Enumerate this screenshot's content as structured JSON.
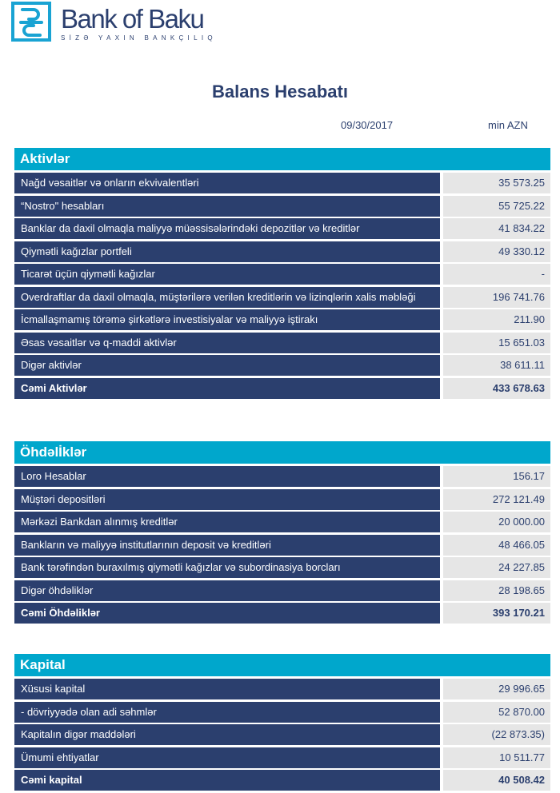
{
  "logo": {
    "brand": "Bank of Baku",
    "tagline": "SİZƏ YAXIN BANKÇILIQ"
  },
  "title": "Balans Hesabatı",
  "date": "09/30/2017",
  "unit": "min AZN",
  "colors": {
    "navy": "#2b3f6e",
    "cyan": "#00a7cc",
    "value_bg": "#e6e6e6"
  },
  "sections": [
    {
      "title": "Aktivlər",
      "rows": [
        {
          "label": "Nağd vəsaitlər və onların ekvivalentləri",
          "value": "35 573.25"
        },
        {
          "label": "“Nostro\" hesabları",
          "value": "55 725.22"
        },
        {
          "label": "Banklar da daxil olmaqla maliyyə müəssisələrindəki depozitlər və kreditlər",
          "value": "41 834.22"
        },
        {
          "label": "Qiymətli kağızlar portfeli",
          "value": "49 330.12"
        },
        {
          "label": "Ticarət üçün qiymətli kağızlar",
          "value": "-"
        },
        {
          "label": "Overdraftlar da daxil olmaqla, müştərilərə verilən kreditlərin və lizinqlərin xalis məbləği",
          "value": "196 741.76"
        },
        {
          "label": "İcmallaşmamış törəmə şirkətlərə investisiyalar və maliyyə iştirakı",
          "value": "211.90"
        },
        {
          "label": "Əsas vəsaitlər və q-maddi aktivlər",
          "value": "15 651.03"
        },
        {
          "label": "Digər aktivlər",
          "value": "38 611.11"
        }
      ],
      "total": {
        "label": "Cəmi Aktivlər",
        "value": "433 678.63"
      }
    },
    {
      "title": "Öhdəlİklər",
      "rows": [
        {
          "label": "Loro Hesablar",
          "value": "156.17"
        },
        {
          "label": "Müştəri depositləri",
          "value": "272 121.49"
        },
        {
          "label": "Mərkəzi Bankdan alınmış kreditlər",
          "value": "20 000.00"
        },
        {
          "label": "Bankların və maliyyə institutlarının deposit və kreditləri",
          "value": "48 466.05"
        },
        {
          "label": "Bank tərəfindən buraxılmış qiymətli kağızlar və subordinasiya borcları",
          "value": "24 227.85"
        },
        {
          "label": "Digər öhdəliklər",
          "value": "28 198.65"
        }
      ],
      "total": {
        "label": "Cəmi Öhdəliklər",
        "value": "393 170.21"
      }
    },
    {
      "title": "Kapital",
      "rows": [
        {
          "label": "Xüsusi kapital",
          "value": "29 996.65"
        },
        {
          "label": "- dövriyyədə olan adi səhmlər",
          "value": "52 870.00"
        },
        {
          "label": "Kapitalın digər maddələri",
          "value": "(22 873.35)"
        },
        {
          "label": "Ümumi ehtiyatlar",
          "value": "10 511.77"
        }
      ],
      "total": {
        "label": "Cəmi kapital",
        "value": "40 508.42"
      }
    }
  ]
}
